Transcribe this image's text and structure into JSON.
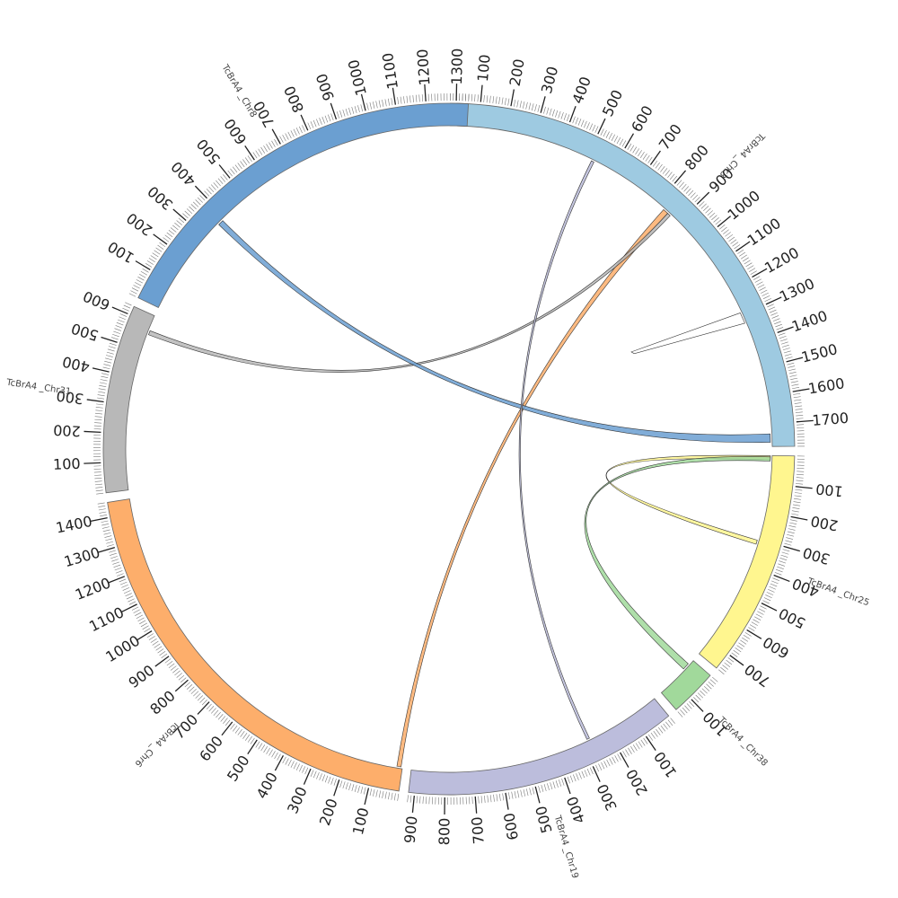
{
  "diagram": {
    "type": "circos",
    "chromosomes": [
      {
        "id": "chr3",
        "name": "TcBrA4 _Chr3",
        "length": 1780,
        "color": "#9ecae1",
        "tick_labels": [
          "100",
          "200",
          "300",
          "400",
          "500",
          "600",
          "700",
          "800",
          "900",
          "1000",
          "1100",
          "1200",
          "1300",
          "1400",
          "1500",
          "1600",
          "1700"
        ]
      },
      {
        "id": "chr25",
        "name": "TcBrA4 _Chr25",
        "length": 760,
        "color": "#fff68f",
        "tick_labels": [
          "100",
          "200",
          "300",
          "400",
          "500",
          "600",
          "700"
        ]
      },
      {
        "id": "chr38",
        "name": "TcBrA4 _Chr38",
        "length": 160,
        "color": "#a1d99b",
        "tick_labels": [
          "100"
        ]
      },
      {
        "id": "chr19",
        "name": "TcBrA4 _Chr19",
        "length": 920,
        "color": "#bcbddc",
        "tick_labels": [
          "100",
          "200",
          "300",
          "400",
          "500",
          "600",
          "700",
          "800",
          "900"
        ]
      },
      {
        "id": "chr6",
        "name": "TcBrA4 _Chr6",
        "length": 1450,
        "color": "#fdae6b",
        "tick_labels": [
          "100",
          "200",
          "300",
          "400",
          "500",
          "600",
          "700",
          "800",
          "900",
          "1000",
          "1100",
          "1200",
          "1300",
          "1400"
        ]
      },
      {
        "id": "chr31",
        "name": "TcBrA4 _Chr31",
        "length": 630,
        "color": "#b8b8b8",
        "tick_labels": [
          "100",
          "200",
          "300",
          "400",
          "500",
          "600"
        ]
      },
      {
        "id": "chr8",
        "name": "TcBrA4 _Chr8",
        "length": 1340,
        "color": "#6b9fd1",
        "tick_labels": [
          "100",
          "200",
          "300",
          "400",
          "500",
          "600",
          "700",
          "800",
          "900",
          "1000",
          "1100",
          "1200",
          "1300"
        ]
      }
    ],
    "links": [
      {
        "from": {
          "chr": "chr3",
          "start": 830,
          "end": 850
        },
        "to": {
          "chr": "chr6",
          "start": 5,
          "end": 20
        },
        "color": "#fdae6b"
      },
      {
        "from": {
          "chr": "chr3",
          "start": 850,
          "end": 862
        },
        "to": {
          "chr": "chr31",
          "start": 560,
          "end": 575
        },
        "color": "#b8b8b8"
      },
      {
        "from": {
          "chr": "chr3",
          "start": 1735,
          "end": 1765
        },
        "to": {
          "chr": "chr8",
          "start": 365,
          "end": 385
        },
        "color": "#6b9fd1"
      },
      {
        "from": {
          "chr": "chr3",
          "start": 520,
          "end": 530
        },
        "to": {
          "chr": "chr19",
          "start": 270,
          "end": 280
        },
        "color": "#bcbddc"
      },
      {
        "from": {
          "chr": "chr3",
          "start": 1290,
          "end": 1330
        },
        "to": {
          "chr": "chr3",
          "start": 1290,
          "end": 1330
        },
        "color": "#ffffff"
      },
      {
        "from": {
          "chr": "chr25",
          "start": 1,
          "end": 15
        },
        "to": {
          "chr": "chr25",
          "start": 305,
          "end": 320
        },
        "color": "#fff68f"
      },
      {
        "from": {
          "chr": "chr25",
          "start": 5,
          "end": 20
        },
        "to": {
          "chr": "chr38",
          "start": 20,
          "end": 45
        },
        "color": "#a1d99b"
      }
    ]
  }
}
